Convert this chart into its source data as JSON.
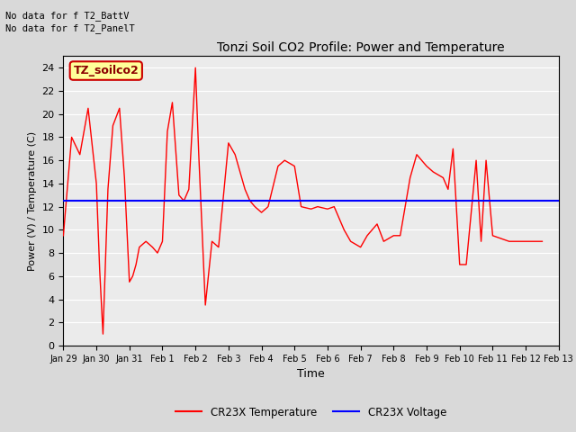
{
  "title": "Tonzi Soil CO2 Profile: Power and Temperature",
  "xlabel": "Time",
  "ylabel": "Power (V) / Temperature (C)",
  "ylim": [
    0,
    25
  ],
  "yticks": [
    0,
    2,
    4,
    6,
    8,
    10,
    12,
    14,
    16,
    18,
    20,
    22,
    24
  ],
  "voltage_value": 12.5,
  "no_data_text1": "No data for f T2_BattV",
  "no_data_text2": "No data for f T2_PanelT",
  "legend_label": "TZ_soilco2",
  "temp_label": "CR23X Temperature",
  "volt_label": "CR23X Voltage",
  "temp_color": "#ff0000",
  "volt_color": "#0000ff",
  "legend_box_facecolor": "#ffff99",
  "legend_box_edgecolor": "#cc0000",
  "bg_color": "#d9d9d9",
  "plot_bg_color": "#ebebeb",
  "grid_color": "#ffffff",
  "temp_data_x": [
    0.0,
    0.25,
    0.5,
    0.75,
    1.0,
    1.1,
    1.2,
    1.35,
    1.5,
    1.7,
    1.85,
    2.0,
    2.1,
    2.2,
    2.3,
    2.5,
    2.7,
    2.85,
    3.0,
    3.15,
    3.3,
    3.5,
    3.65,
    3.8,
    4.0,
    4.1,
    4.3,
    4.5,
    4.7,
    5.0,
    5.2,
    5.5,
    5.65,
    5.8,
    6.0,
    6.2,
    6.5,
    6.7,
    7.0,
    7.2,
    7.5,
    7.7,
    8.0,
    8.2,
    8.5,
    8.7,
    9.0,
    9.2,
    9.5,
    9.7,
    10.0,
    10.2,
    10.5,
    10.7,
    11.0,
    11.2,
    11.5,
    11.65,
    11.8,
    12.0,
    12.2,
    12.5,
    12.65,
    12.8,
    13.0,
    13.5,
    14.0,
    14.5
  ],
  "temp_data_y": [
    9.5,
    18.0,
    16.5,
    20.5,
    14.0,
    6.5,
    1.0,
    13.5,
    19.0,
    20.5,
    14.5,
    5.5,
    6.0,
    7.0,
    8.5,
    9.0,
    8.5,
    8.0,
    9.0,
    18.5,
    21.0,
    13.0,
    12.5,
    13.5,
    24.0,
    16.5,
    3.5,
    9.0,
    8.5,
    17.5,
    16.5,
    13.5,
    12.5,
    12.0,
    11.5,
    12.0,
    15.5,
    16.0,
    15.5,
    12.0,
    11.8,
    12.0,
    11.8,
    12.0,
    10.0,
    9.0,
    8.5,
    9.5,
    10.5,
    9.0,
    9.5,
    9.5,
    14.5,
    16.5,
    15.5,
    15.0,
    14.5,
    13.5,
    17.0,
    7.0,
    7.0,
    16.0,
    9.0,
    16.0,
    9.5,
    9.0,
    9.0,
    9.0
  ],
  "x_tick_positions": [
    0,
    1,
    2,
    3,
    4,
    5,
    6,
    7,
    8,
    9,
    10,
    11,
    12,
    13,
    14,
    15
  ],
  "x_tick_labels": [
    "Jan 29",
    "Jan 30",
    "Jan 31",
    "Feb 1",
    "Feb 2",
    "Feb 3",
    "Feb 4",
    "Feb 5",
    "Feb 6",
    "Feb 7",
    "Feb 8",
    "Feb 9",
    "Feb 10",
    "Feb 11",
    "Feb 12",
    "Feb 13"
  ]
}
